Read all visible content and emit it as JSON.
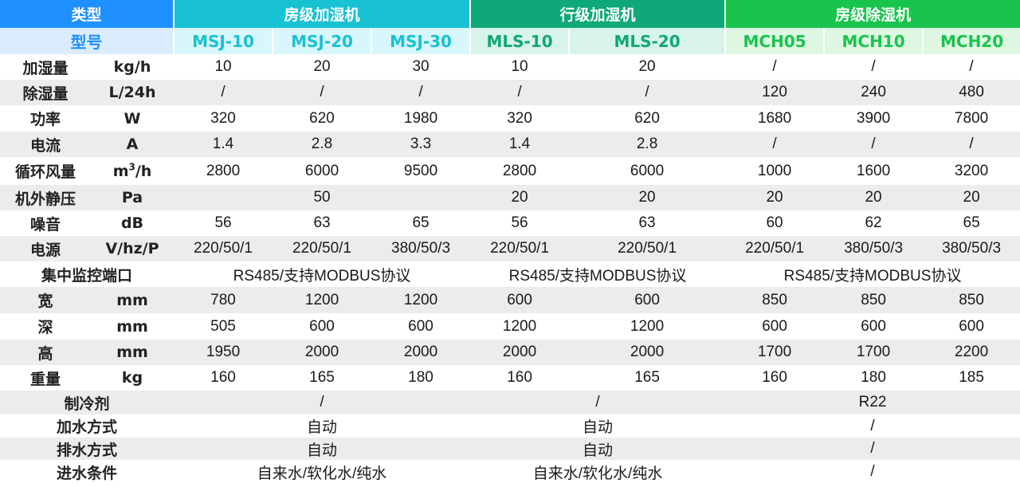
{
  "colors": {
    "type_header": "#1e90ff",
    "room_humidifier": "#18c2d2",
    "row_humidifier": "#0fa878",
    "room_dehumidifier": "#19c44c"
  },
  "header": {
    "type_label": "类型",
    "groups": [
      "房级加湿机",
      "行级加湿机",
      "房级除湿机"
    ]
  },
  "model_row": {
    "label": "型号",
    "models": [
      "MSJ-10",
      "MSJ-20",
      "MSJ-30",
      "MLS-10",
      "MLS-20",
      "MCH05",
      "MCH10",
      "MCH20"
    ]
  },
  "rows": {
    "humidify": {
      "label": "加湿量",
      "unit": "kg/h",
      "values": [
        "10",
        "20",
        "30",
        "10",
        "20",
        "/",
        "/",
        "/"
      ]
    },
    "dehumidify": {
      "label": "除湿量",
      "unit": "L/24h",
      "values": [
        "/",
        "/",
        "/",
        "/",
        "/",
        "120",
        "240",
        "480"
      ]
    },
    "power": {
      "label": "功率",
      "unit": "W",
      "values": [
        "320",
        "620",
        "1980",
        "320",
        "620",
        "1680",
        "3900",
        "7800"
      ]
    },
    "current": {
      "label": "电流",
      "unit": "A",
      "values": [
        "1.4",
        "2.8",
        "3.3",
        "1.4",
        "2.8",
        "/",
        "/",
        "/"
      ]
    },
    "airflow": {
      "label": "循环风量",
      "unit_base": "m",
      "unit_sup": "3",
      "unit_tail": "/h",
      "values": [
        "2800",
        "6000",
        "9500",
        "2800",
        "6000",
        "1000",
        "1600",
        "3200"
      ]
    },
    "static_pressure": {
      "label": "机外静压",
      "unit": "Pa",
      "values": [
        "50",
        "20",
        "20",
        "20",
        "20",
        "20"
      ]
    },
    "noise": {
      "label": "噪音",
      "unit": "dB",
      "values": [
        "56",
        "63",
        "65",
        "56",
        "63",
        "60",
        "62",
        "65"
      ]
    },
    "power_supply": {
      "label": "电源",
      "unit": "V/hz/P",
      "values": [
        "220/50/1",
        "220/50/1",
        "380/50/3",
        "220/50/1",
        "220/50/1",
        "220/50/1",
        "380/50/3",
        "380/50/3"
      ]
    },
    "monitor_port": {
      "label": "集中监控端口",
      "values": [
        "RS485/支持MODBUS协议",
        "RS485/支持MODBUS协议",
        "RS485/支持MODBUS协议"
      ]
    },
    "width": {
      "label": "宽",
      "unit": "mm",
      "values": [
        "780",
        "1200",
        "1200",
        "600",
        "600",
        "850",
        "850",
        "850"
      ]
    },
    "depth": {
      "label": "深",
      "unit": "mm",
      "values": [
        "505",
        "600",
        "600",
        "1200",
        "1200",
        "600",
        "600",
        "600"
      ]
    },
    "height": {
      "label": "高",
      "unit": "mm",
      "values": [
        "1950",
        "2000",
        "2000",
        "2000",
        "2000",
        "1700",
        "1700",
        "2200"
      ]
    },
    "weight": {
      "label": "重量",
      "unit": "kg",
      "values": [
        "160",
        "165",
        "180",
        "160",
        "165",
        "160",
        "180",
        "185"
      ]
    },
    "refrigerant": {
      "label": "制冷剂",
      "values": [
        "/",
        "/",
        "R22"
      ]
    },
    "water_supply_mode": {
      "label": "加水方式",
      "values": [
        "自动",
        "自动",
        "/"
      ]
    },
    "drain_mode": {
      "label": "排水方式",
      "values": [
        "自动",
        "自动",
        "/"
      ]
    },
    "inlet_water": {
      "label": "进水条件",
      "values": [
        "自来水/软化水/纯水",
        "自来水/软化水/纯水",
        "/"
      ]
    }
  }
}
